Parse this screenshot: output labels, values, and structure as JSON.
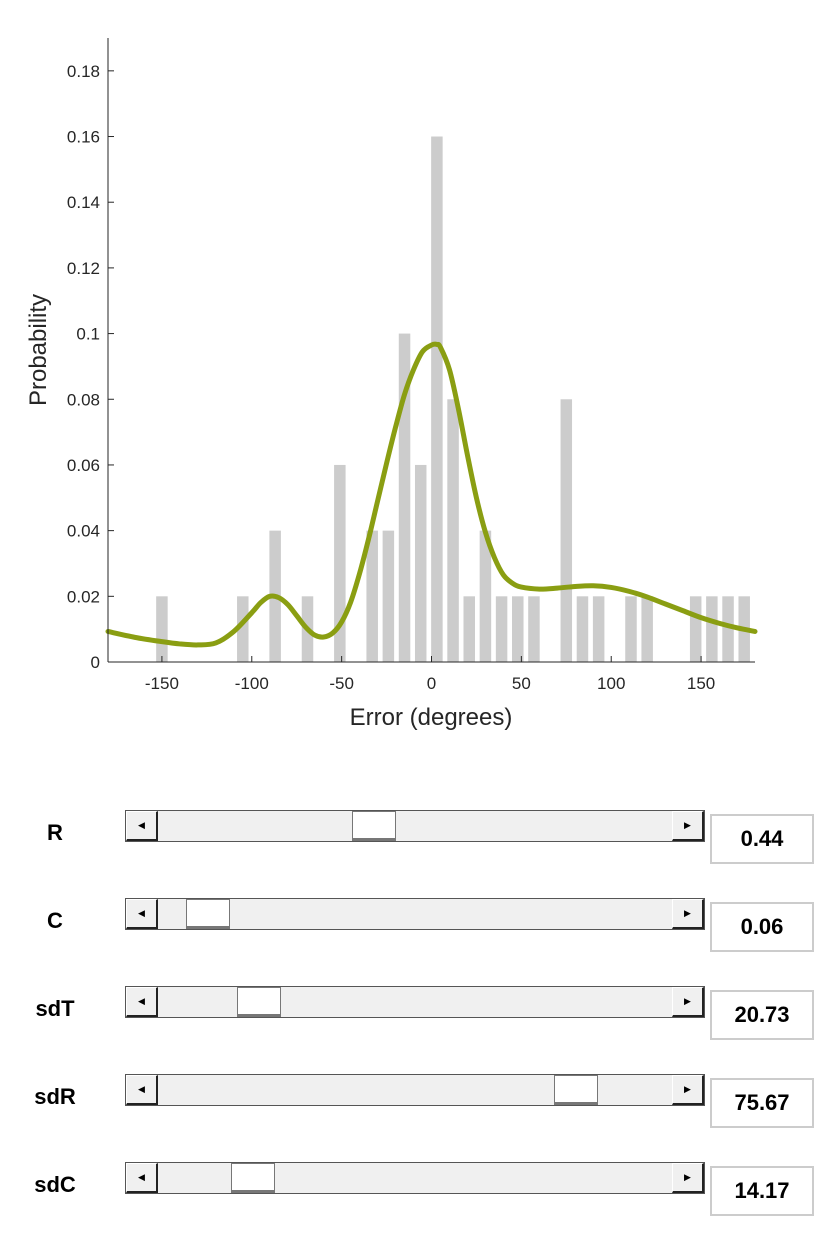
{
  "chart_data": {
    "type": "bar",
    "xlabel": "Error (degrees)",
    "ylabel": "Probability",
    "xlim": [
      -180,
      180
    ],
    "ylim": [
      0,
      0.19
    ],
    "xticks": [
      -150,
      -100,
      -50,
      0,
      50,
      100,
      150
    ],
    "xtick_labels": [
      "-150",
      "-100",
      "-50",
      "0",
      "50",
      "100",
      "150"
    ],
    "yticks": [
      0,
      0.02,
      0.04,
      0.06,
      0.08,
      0.1,
      0.12,
      0.14,
      0.16,
      0.18
    ],
    "ytick_labels": [
      "0",
      "0.02",
      "0.04",
      "0.06",
      "0.08",
      "0.1",
      "0.12",
      "0.14",
      "0.16",
      "0.18"
    ],
    "bars": {
      "color": "#cccccc",
      "x": [
        -150,
        -105,
        -87,
        -69,
        -51,
        -33,
        -24,
        -15,
        -6,
        3,
        12,
        21,
        30,
        39,
        48,
        57,
        75,
        84,
        93,
        111,
        120,
        147,
        156,
        165,
        174
      ],
      "values": [
        0.02,
        0.02,
        0.04,
        0.02,
        0.06,
        0.04,
        0.04,
        0.1,
        0.06,
        0.16,
        0.08,
        0.02,
        0.04,
        0.02,
        0.02,
        0.02,
        0.08,
        0.02,
        0.02,
        0.02,
        0.02,
        0.02,
        0.02,
        0.02,
        0.02
      ]
    },
    "curve": {
      "color": "#8a9e12",
      "x": [
        -180,
        -165,
        -150,
        -140,
        -130,
        -120,
        -110,
        -100,
        -95,
        -90,
        -85,
        -80,
        -75,
        -70,
        -65,
        -60,
        -55,
        -50,
        -45,
        -40,
        -35,
        -30,
        -25,
        -20,
        -15,
        -10,
        -5,
        0,
        3,
        5,
        10,
        15,
        20,
        25,
        30,
        35,
        40,
        45,
        50,
        60,
        70,
        80,
        90,
        100,
        110,
        120,
        130,
        140,
        150,
        160,
        170,
        180
      ],
      "y": [
        0.0093,
        0.0075,
        0.0062,
        0.0055,
        0.0052,
        0.0058,
        0.0093,
        0.015,
        0.0181,
        0.02,
        0.0196,
        0.0175,
        0.0141,
        0.0106,
        0.0082,
        0.0076,
        0.0088,
        0.0122,
        0.0182,
        0.027,
        0.0375,
        0.049,
        0.0605,
        0.0715,
        0.0815,
        0.089,
        0.0945,
        0.0965,
        0.0967,
        0.0958,
        0.089,
        0.077,
        0.063,
        0.05,
        0.0395,
        0.0318,
        0.0265,
        0.024,
        0.0228,
        0.0222,
        0.0225,
        0.023,
        0.0232,
        0.0227,
        0.0215,
        0.0198,
        0.0177,
        0.0156,
        0.0135,
        0.0118,
        0.0104,
        0.0093
      ]
    }
  },
  "sliders": [
    {
      "label": "R",
      "value": "0.44",
      "position": 0.411
    },
    {
      "label": "C",
      "value": "0.06",
      "position": 0.059
    },
    {
      "label": "sdT",
      "value": "20.73",
      "position": 0.168
    },
    {
      "label": "sdR",
      "value": "75.67",
      "position": 0.838
    },
    {
      "label": "sdC",
      "value": "14.17",
      "position": 0.155
    }
  ]
}
